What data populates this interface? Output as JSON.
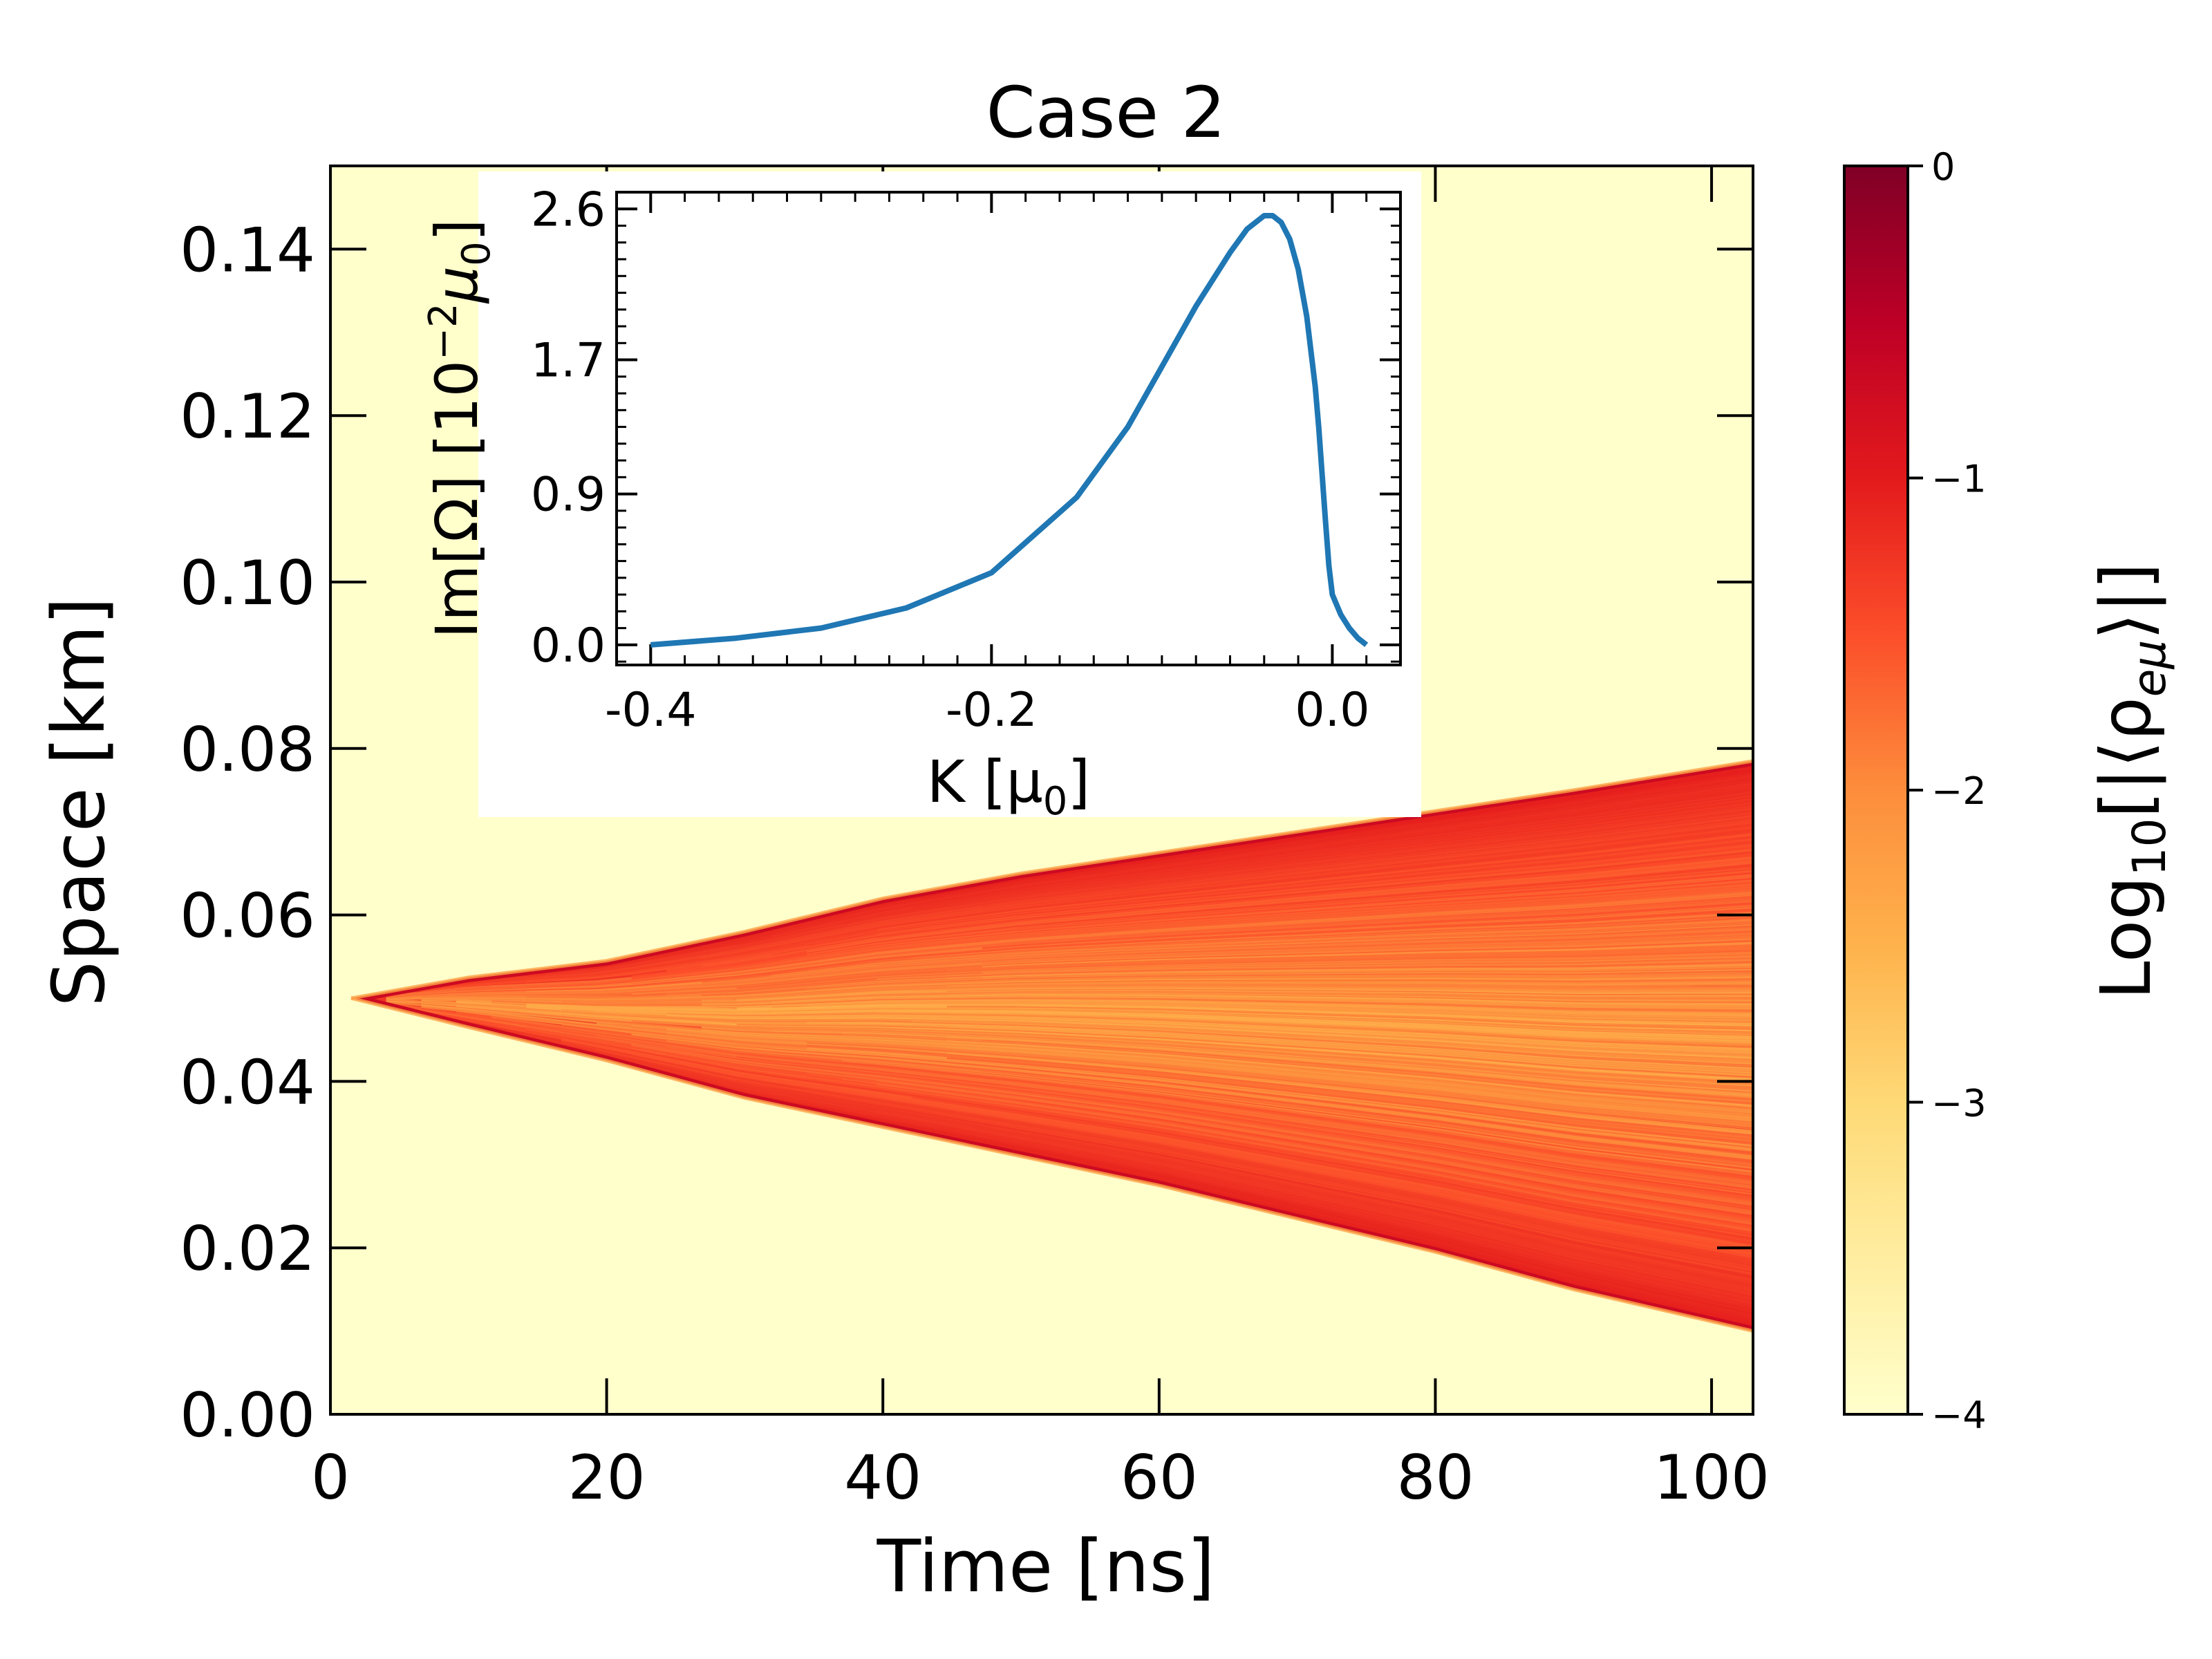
{
  "colors": {
    "background": "#ffffff",
    "axis": "#000000",
    "curve": "#1f77b4",
    "colormap": [
      "#ffffcc",
      "#ffeda0",
      "#fed976",
      "#feb24c",
      "#fd8d3c",
      "#fc4e2a",
      "#e31a1c",
      "#bd0026",
      "#800026"
    ]
  },
  "chart_data": [
    {
      "id": "main",
      "type": "heatmap",
      "title": "Case 2",
      "xlabel": "Time [ns]",
      "ylabel": "Space [km]",
      "xlim": [
        0,
        103
      ],
      "ylim": [
        0,
        0.15
      ],
      "xticks": [
        0,
        20,
        40,
        60,
        80,
        100
      ],
      "xtick_labels": [
        "0",
        "20",
        "40",
        "60",
        "80",
        "100"
      ],
      "yticks": [
        0,
        0.02,
        0.04,
        0.06,
        0.08,
        0.1,
        0.12,
        0.14
      ],
      "ytick_labels": [
        "0.00",
        "0.02",
        "0.04",
        "0.06",
        "0.08",
        "0.10",
        "0.12",
        "0.14"
      ],
      "wedge": {
        "apex": {
          "time": 1.5,
          "space": 0.05
        },
        "upper_edge": [
          [
            1.5,
            0.05
          ],
          [
            10,
            0.0525
          ],
          [
            20,
            0.0545
          ],
          [
            30,
            0.058
          ],
          [
            40,
            0.062
          ],
          [
            50,
            0.065
          ],
          [
            60,
            0.0675
          ],
          [
            70,
            0.07
          ],
          [
            80,
            0.0725
          ],
          [
            90,
            0.075
          ],
          [
            103,
            0.0785
          ]
        ],
        "lower_edge": [
          [
            1.5,
            0.05
          ],
          [
            10,
            0.0465
          ],
          [
            20,
            0.0425
          ],
          [
            30,
            0.038
          ],
          [
            40,
            0.0345
          ],
          [
            50,
            0.031
          ],
          [
            60,
            0.0275
          ],
          [
            70,
            0.0235
          ],
          [
            80,
            0.0195
          ],
          [
            90,
            0.015
          ],
          [
            103,
            0.01
          ]
        ],
        "edge_log10_value": -0.7,
        "interior_log10_range": [
          -2.6,
          -1.0
        ],
        "outside_log10_value": -4
      },
      "colorbar": {
        "label_main": "Log",
        "label_sub": "10",
        "label_rest": "[|⟨ρ",
        "label_sub2": "eμ",
        "label_end": "⟩|]",
        "range": [
          -4,
          0
        ],
        "ticks": [
          0,
          -1,
          -2,
          -3,
          -4
        ],
        "tick_labels": [
          "0",
          "−1",
          "−2",
          "−3",
          "−4"
        ]
      }
    },
    {
      "id": "inset",
      "type": "line",
      "xlabel": "K [μ",
      "xlabel_sub": "0",
      "xlabel_end": "]",
      "ylabel": "Im[Ω] [10",
      "ylabel_sup": "−2",
      "ylabel_mid": "μ",
      "ylabel_sub": "0",
      "ylabel_end": "]",
      "xlim": [
        -0.42,
        0.04
      ],
      "ylim": [
        -0.12,
        2.7
      ],
      "xticks": [
        -0.4,
        -0.2,
        0.0
      ],
      "xtick_labels": [
        "-0.4",
        "-0.2",
        "0.0"
      ],
      "yticks": [
        0.0,
        0.9,
        1.7,
        2.6
      ],
      "ytick_labels": [
        "0.0",
        "0.9",
        "1.7",
        "2.6"
      ],
      "series": [
        {
          "name": "Im[Ω]",
          "x": [
            -0.4,
            -0.35,
            -0.3,
            -0.25,
            -0.2,
            -0.15,
            -0.12,
            -0.1,
            -0.08,
            -0.06,
            -0.05,
            -0.04,
            -0.035,
            -0.03,
            -0.025,
            -0.02,
            -0.015,
            -0.01,
            -0.008,
            -0.006,
            -0.004,
            -0.002,
            0.0,
            0.005,
            0.01,
            0.015,
            0.02
          ],
          "y": [
            0.0,
            0.04,
            0.1,
            0.22,
            0.43,
            0.88,
            1.3,
            1.66,
            2.02,
            2.34,
            2.48,
            2.56,
            2.56,
            2.52,
            2.42,
            2.24,
            1.96,
            1.54,
            1.3,
            1.02,
            0.74,
            0.47,
            0.3,
            0.18,
            0.1,
            0.04,
            0.0
          ]
        }
      ]
    }
  ]
}
